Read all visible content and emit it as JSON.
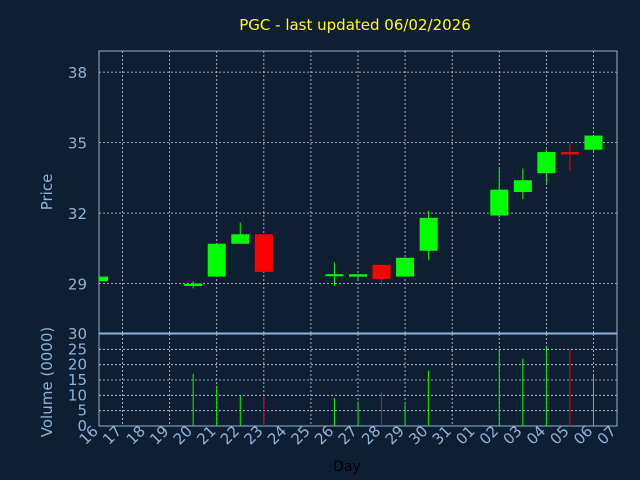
{
  "chart_data": {
    "type": "candlestick",
    "title": "PGC - last updated 06/02/2026",
    "xlabel": "Day",
    "x_ticks": [
      "16",
      "17",
      "18",
      "19",
      "20",
      "21",
      "22",
      "23",
      "24",
      "25",
      "26",
      "27",
      "28",
      "29",
      "30",
      "31",
      "01",
      "02",
      "03",
      "04",
      "05",
      "06",
      "07"
    ],
    "price_panel": {
      "ylabel": "Price",
      "ylim": [
        26.9,
        38.9
      ],
      "y_ticks": [
        29,
        32,
        35,
        38
      ],
      "grid": true
    },
    "volume_panel": {
      "ylabel": "Volume (0000)",
      "ylim": [
        0,
        30
      ],
      "y_ticks": [
        0,
        5,
        10,
        15,
        20,
        25,
        30
      ],
      "grid": true
    },
    "candles": [
      {
        "day": "16",
        "open": 29.1,
        "high": 29.3,
        "low": 29.1,
        "close": 29.3,
        "volume": 0
      },
      {
        "day": "20",
        "open": 28.9,
        "high": 29.1,
        "low": 28.8,
        "close": 29.0,
        "volume": 17
      },
      {
        "day": "21",
        "open": 29.3,
        "high": 30.7,
        "low": 29.3,
        "close": 30.7,
        "volume": 13
      },
      {
        "day": "22",
        "open": 30.7,
        "high": 31.6,
        "low": 30.7,
        "close": 31.1,
        "volume": 10
      },
      {
        "day": "23",
        "open": 31.1,
        "high": 31.1,
        "low": 29.5,
        "close": 29.5,
        "volume": 10
      },
      {
        "day": "26",
        "open": 29.4,
        "high": 29.9,
        "low": 28.9,
        "close": 29.4,
        "volume": 9
      },
      {
        "day": "27",
        "open": 29.3,
        "high": 29.4,
        "low": 29.2,
        "close": 29.4,
        "volume": 8
      },
      {
        "day": "28",
        "open": 29.8,
        "high": 29.8,
        "low": 28.9,
        "close": 29.2,
        "volume": 11
      },
      {
        "day": "29",
        "open": 29.3,
        "high": 30.1,
        "low": 29.3,
        "close": 30.1,
        "volume": 7
      },
      {
        "day": "30",
        "open": 30.4,
        "high": 32.1,
        "low": 30.0,
        "close": 31.8,
        "volume": 18
      },
      {
        "day": "02",
        "open": 31.9,
        "high": 33.9,
        "low": 31.8,
        "close": 33.0,
        "volume": 25
      },
      {
        "day": "03",
        "open": 32.9,
        "high": 33.9,
        "low": 32.6,
        "close": 33.4,
        "volume": 22
      },
      {
        "day": "04",
        "open": 33.7,
        "high": 34.7,
        "low": 33.3,
        "close": 34.6,
        "volume": 26
      },
      {
        "day": "05",
        "open": 34.6,
        "high": 35.0,
        "low": 33.8,
        "close": 34.5,
        "volume": 25
      },
      {
        "day": "06",
        "open": 34.7,
        "high": 35.3,
        "low": 34.6,
        "close": 35.3,
        "volume": 17
      }
    ],
    "colors": {
      "background": "#0f1f33",
      "up": "#00ff00",
      "down": "#ff0000",
      "grid": "#c8d0dc",
      "axis_text": "#8fb3d9",
      "title": "#ffff00",
      "frame": "#8fb3d9"
    }
  }
}
